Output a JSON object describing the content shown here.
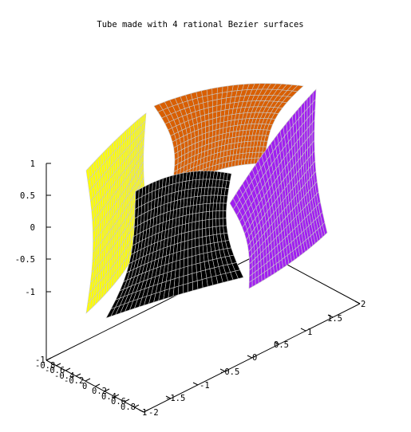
{
  "chart_data": {
    "type": "surface3d",
    "title": "Tube made with 4 rational Bezier surfaces",
    "zlim": [
      -1,
      1
    ],
    "z_ticks": [
      "1",
      "0.5",
      "0",
      "-0.5",
      "-1"
    ],
    "x_ticks": [
      "-1",
      "-0.8",
      "-0.6",
      "-0.4",
      "-0.2",
      "0",
      "0.2",
      "0.4",
      "0.6",
      "0.8",
      "1"
    ],
    "y_ticks": [
      "2",
      "1.5",
      "1",
      "0.5",
      "0",
      "-0.5",
      "-1",
      "-1.5",
      "-2"
    ],
    "grid": false,
    "surfaces": [
      {
        "patch": 1,
        "color": "#ffff00"
      },
      {
        "patch": 2,
        "color": "#d95f02"
      },
      {
        "patch": 3,
        "color": "#a020f0"
      },
      {
        "patch": 4,
        "color": "#000000"
      }
    ],
    "mesh_color": "#c8c8c8"
  }
}
